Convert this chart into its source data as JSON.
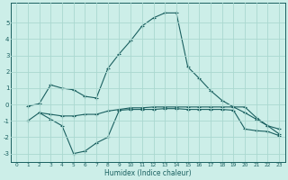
{
  "xlabel": "Humidex (Indice chaleur)",
  "bg_color": "#cceee8",
  "grid_color": "#aad8d0",
  "line_color": "#1a6060",
  "xlim": [
    -0.5,
    23.5
  ],
  "ylim": [
    -3.5,
    6.2
  ],
  "yticks": [
    -3,
    -2,
    -1,
    0,
    1,
    2,
    3,
    4,
    5
  ],
  "xticks": [
    0,
    1,
    2,
    3,
    4,
    5,
    6,
    7,
    8,
    9,
    10,
    11,
    12,
    13,
    14,
    15,
    16,
    17,
    18,
    19,
    20,
    21,
    22,
    23
  ],
  "line1_x": [
    1,
    2,
    3,
    4,
    5,
    6,
    7,
    8,
    9,
    10,
    11,
    12,
    13,
    14,
    15,
    16,
    17,
    18,
    19,
    20,
    21,
    22,
    23
  ],
  "line1_y": [
    -0.1,
    0.05,
    1.2,
    1.0,
    0.9,
    0.5,
    0.4,
    2.2,
    3.1,
    3.9,
    4.8,
    5.3,
    5.6,
    5.6,
    2.3,
    1.6,
    0.85,
    0.25,
    -0.15,
    -0.15,
    -0.8,
    -1.3,
    -1.5
  ],
  "line2_x": [
    2,
    3,
    4,
    5,
    6,
    7,
    8,
    9,
    10,
    11,
    12,
    13,
    14,
    15,
    16,
    17,
    18,
    19,
    20,
    21,
    22,
    23
  ],
  "line2_y": [
    -0.5,
    -0.6,
    -0.7,
    -0.7,
    -0.6,
    -0.6,
    -0.4,
    -0.3,
    -0.2,
    -0.2,
    -0.15,
    -0.15,
    -0.15,
    -0.15,
    -0.15,
    -0.15,
    -0.15,
    -0.15,
    -0.5,
    -0.9,
    -1.3,
    -1.8
  ],
  "line3_x": [
    1,
    2,
    3,
    4,
    5,
    6,
    7,
    8,
    9,
    10,
    11,
    12,
    13,
    14,
    15,
    16,
    17,
    18,
    19,
    20,
    21,
    22,
    23
  ],
  "line3_y": [
    -1.0,
    -0.5,
    -0.9,
    -1.3,
    -3.0,
    -2.85,
    -2.35,
    -2.0,
    -0.35,
    -0.3,
    -0.3,
    -0.3,
    -0.25,
    -0.25,
    -0.3,
    -0.3,
    -0.3,
    -0.3,
    -0.35,
    -1.5,
    -1.6,
    -1.65,
    -1.9
  ]
}
